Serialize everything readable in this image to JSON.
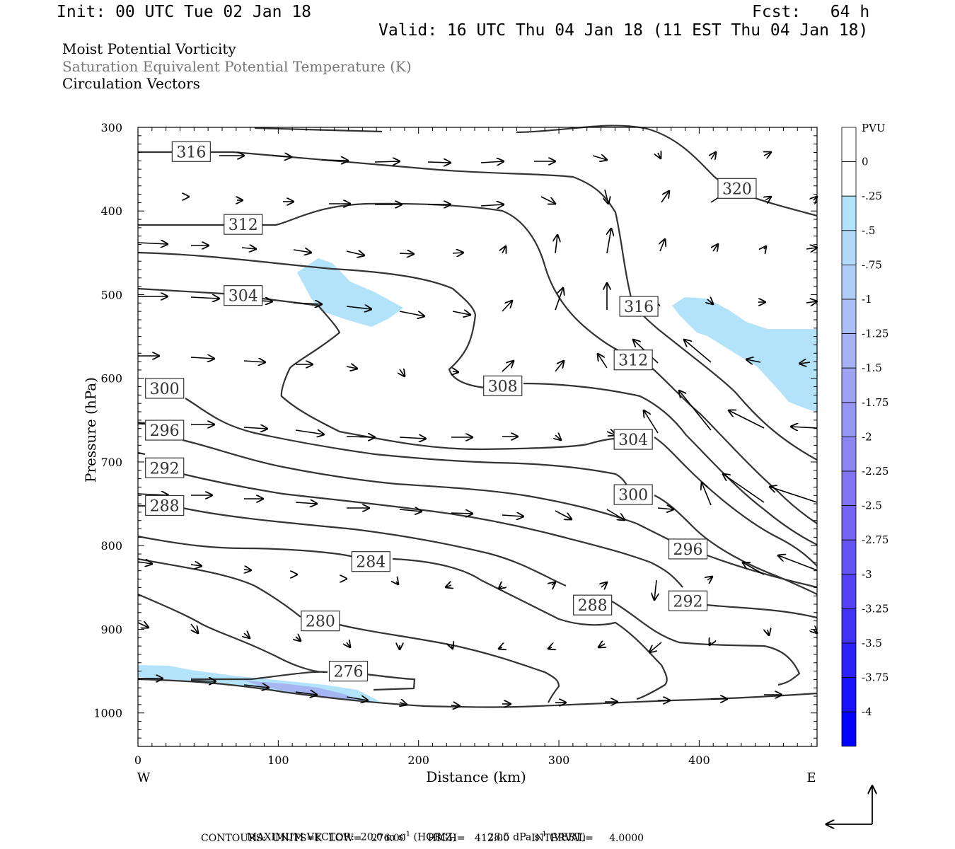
{
  "header": {
    "init": "Init: 00 UTC Tue 02 Jan 18",
    "fcst": "Fcst:   64 h",
    "valid": "Valid: 16 UTC Thu 04 Jan 18 (11 EST Thu 04 Jan 18)",
    "title1": "Moist Potential Vorticity",
    "title2": "Saturation Equivalent Potential Temperature (K)",
    "title3": "Circulation Vectors"
  },
  "footer": {
    "line1_prefix": "MAXIMUM VECTOR:",
    "line1_horiz_val": "20.0 m s",
    "line1_horiz_unit": "(HORIZ)",
    "line1_vert_val": "28.5 dPa s",
    "line1_vert_unit": "(VERT)",
    "exponent": "-1",
    "line2": "CONTOURS:  UNITS=K  LOW=   276.00       HIGH=   412.00       INTERVAL=     4.0000"
  },
  "colors": {
    "contour": "#333333",
    "pv_light": "#b3e3fb",
    "pv_mid": "#a6b6f3"
  },
  "chart_data": {
    "type": "cross-section",
    "xlabel": "Distance (km)",
    "ylabel": "Pressure (hPa)",
    "xlim": [
      0,
      484
    ],
    "ylim": [
      1040,
      300
    ],
    "x_ticks": [
      "0",
      "100",
      "200",
      "300",
      "400"
    ],
    "y_ticks": [
      "300",
      "400",
      "500",
      "600",
      "700",
      "800",
      "900",
      "1000"
    ],
    "x_ends": [
      "W",
      "E"
    ],
    "colorbar": {
      "unit": "PVU",
      "labels": [
        "0",
        "-.25",
        "-.5",
        "-.75",
        "-1",
        "-1.25",
        "-1.5",
        "-1.75",
        "-2",
        "-2.25",
        "-2.5",
        "-2.75",
        "-3",
        "-3.25",
        "-3.5",
        "-3.75",
        "-4"
      ],
      "colors": [
        "#ffffff",
        "#b3e3fb",
        "#b3daf9",
        "#b0cdf7",
        "#abc0f6",
        "#a5b2f4",
        "#9ea4f3",
        "#9595f2",
        "#8b85f2",
        "#7f75f2",
        "#7265f3",
        "#6354f4",
        "#5343f5",
        "#4132f7",
        "#2d22f9",
        "#1711fc",
        "#0000ff"
      ]
    },
    "contour_labels": [
      {
        "text": "316",
        "x": 38,
        "p": 329
      },
      {
        "text": "312",
        "x": 75,
        "p": 416
      },
      {
        "text": "304",
        "x": 75,
        "p": 501
      },
      {
        "text": "300",
        "x": 19,
        "p": 612
      },
      {
        "text": "296",
        "x": 19,
        "p": 662
      },
      {
        "text": "292",
        "x": 19,
        "p": 707
      },
      {
        "text": "288",
        "x": 19,
        "p": 752
      },
      {
        "text": "284",
        "x": 166,
        "p": 819
      },
      {
        "text": "280",
        "x": 130,
        "p": 890
      },
      {
        "text": "276",
        "x": 150,
        "p": 950
      },
      {
        "text": "320",
        "x": 427,
        "p": 373
      },
      {
        "text": "316",
        "x": 357,
        "p": 514
      },
      {
        "text": "312",
        "x": 353,
        "p": 578
      },
      {
        "text": "308",
        "x": 260,
        "p": 609
      },
      {
        "text": "304",
        "x": 353,
        "p": 673
      },
      {
        "text": "300",
        "x": 353,
        "p": 739
      },
      {
        "text": "296",
        "x": 392,
        "p": 804
      },
      {
        "text": "292",
        "x": 392,
        "p": 866
      },
      {
        "text": "288",
        "x": 324,
        "p": 871
      }
    ],
    "max_vector": {
      "horiz": "20.0 m s-1",
      "vert": "28.5 dPa s-1"
    },
    "contour_info": {
      "units": "K",
      "low": 276.0,
      "high": 412.0,
      "interval": 4.0
    }
  }
}
